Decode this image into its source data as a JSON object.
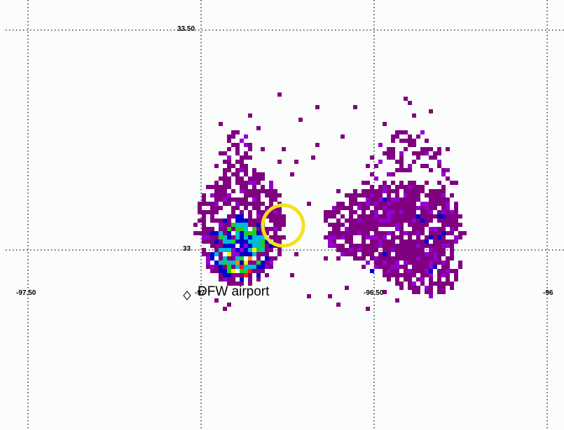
{
  "map": {
    "lat_labels": [
      "33.50",
      "33"
    ],
    "lon_labels": [
      "-97.50",
      "-97",
      "-96.50",
      "-96"
    ],
    "airport_label": "DFW airport",
    "colors": {
      "background": "#fbfdfd",
      "grid": "#111111",
      "marker_circle": "#f2e21a",
      "flash_low": "#800080",
      "flash_mid": "#8b00ff",
      "flash_high": "#ff0000"
    }
  }
}
